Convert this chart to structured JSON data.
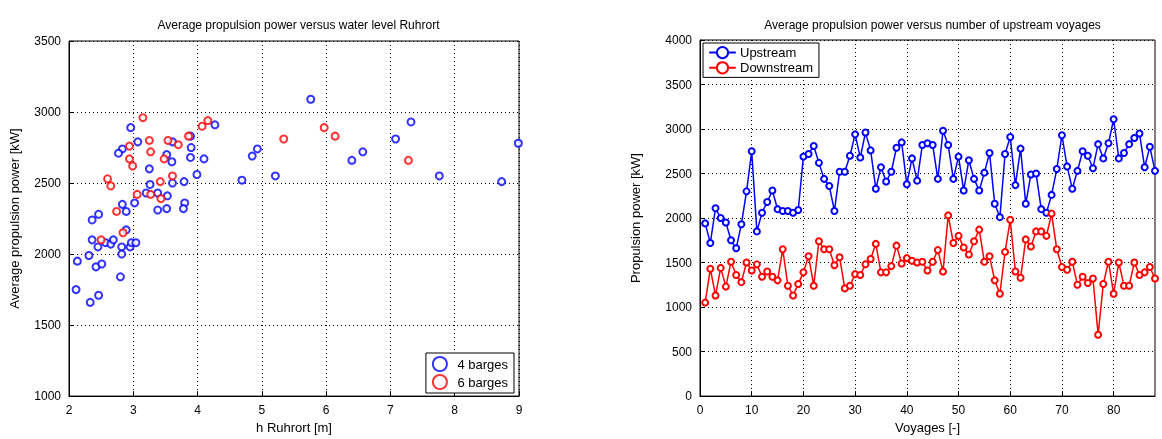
{
  "chart_data": [
    {
      "type": "scatter",
      "title": "Average propulsion power versus water level Ruhrort",
      "xlabel": "h Ruhrort [m]",
      "ylabel": "Average propulsion power [kW]",
      "xlim": [
        2,
        9
      ],
      "xticks": [
        2,
        3,
        4,
        5,
        6,
        7,
        8,
        9
      ],
      "ylim": [
        1000,
        3500
      ],
      "yticks": [
        1000,
        1500,
        2000,
        2500,
        3000,
        3500
      ],
      "grid": true,
      "legend": "bottom right",
      "marker": "circle",
      "series": [
        {
          "name": "4 barges",
          "color": "#0000ff",
          "x": [
            2.96,
            3.07,
            2.83,
            2.77,
            3.25,
            3.26,
            3.2,
            3.38,
            3.53,
            3.52,
            3.6,
            3.61,
            3.9,
            3.89,
            3.89,
            4.1,
            3.99,
            3.79,
            3.61,
            3.8,
            3.78,
            3.52,
            3.38,
            4.27,
            4.69,
            4.85,
            4.93,
            5.21,
            3.02,
            2.83,
            2.89,
            2.46,
            2.36,
            2.89,
            2.36,
            2.45,
            2.57,
            2.65,
            2.69,
            2.82,
            2.82,
            2.95,
            2.97,
            3.04,
            2.31,
            2.13,
            2.42,
            2.51,
            2.8,
            2.11,
            2.46,
            2.33,
            5.76,
            6.4,
            6.57,
            7.08,
            7.32,
            7.76,
            8.73,
            8.99
          ],
          "values": [
            2890,
            2790,
            2740,
            2710,
            2600,
            2490,
            2430,
            2430,
            2410,
            2700,
            2650,
            2790,
            2750,
            2830,
            2680,
            2670,
            2560,
            2510,
            2500,
            2360,
            2320,
            2320,
            2310,
            2910,
            2520,
            2690,
            2740,
            2550,
            2360,
            2350,
            2300,
            2280,
            2240,
            2170,
            2100,
            2050,
            2080,
            2070,
            2100,
            2050,
            2000,
            2050,
            2080,
            2080,
            1990,
            1950,
            1910,
            1930,
            1840,
            1750,
            1710,
            1660,
            3090,
            2660,
            2720,
            2810,
            2930,
            2550,
            2510,
            2780
          ]
        },
        {
          "name": "6 barges",
          "color": "#ff0000",
          "x": [
            3.15,
            2.94,
            3.25,
            3.27,
            2.94,
            2.99,
            3.54,
            3.7,
            3.86,
            4.07,
            4.16,
            3.48,
            3.61,
            3.42,
            2.6,
            2.65,
            3.06,
            3.27,
            3.43,
            2.74,
            2.84,
            2.5,
            5.34,
            5.97,
            6.14,
            7.28
          ],
          "values": [
            2960,
            2760,
            2800,
            2720,
            2670,
            2620,
            2800,
            2770,
            2830,
            2900,
            2940,
            2670,
            2550,
            2510,
            2530,
            2480,
            2420,
            2420,
            2390,
            2300,
            2150,
            2100,
            2810,
            2890,
            2830,
            2660
          ]
        }
      ]
    },
    {
      "type": "line",
      "title": "Average propulsion power versus number of upstream voyages",
      "xlabel": "Voyages [-]",
      "ylabel": "Propulsion power [kW]",
      "xlim": [
        0,
        88
      ],
      "xticks": [
        0,
        10,
        20,
        30,
        40,
        50,
        60,
        70,
        80
      ],
      "ylim": [
        0,
        4000
      ],
      "yticks": [
        0,
        500,
        1000,
        1500,
        2000,
        2500,
        3000,
        3500,
        4000
      ],
      "grid": true,
      "legend": "top left",
      "marker": "circle",
      "x": [
        1,
        2,
        3,
        4,
        5,
        6,
        7,
        8,
        9,
        10,
        11,
        12,
        13,
        14,
        15,
        16,
        17,
        18,
        19,
        20,
        21,
        22,
        23,
        24,
        25,
        26,
        27,
        28,
        29,
        30,
        31,
        32,
        33,
        34,
        35,
        36,
        37,
        38,
        39,
        40,
        41,
        42,
        43,
        44,
        45,
        46,
        47,
        48,
        49,
        50,
        51,
        52,
        53,
        54,
        55,
        56,
        57,
        58,
        59,
        60,
        61,
        62,
        63,
        64,
        65,
        66,
        67,
        68,
        69,
        70,
        71,
        72,
        73,
        74,
        75,
        76,
        77,
        78,
        79,
        80,
        81,
        82,
        83,
        84,
        85,
        86,
        87,
        88
      ],
      "series": [
        {
          "name": "Upstream",
          "color": "#0000ff",
          "values": [
            1940,
            1720,
            2110,
            2000,
            1950,
            1750,
            1660,
            1930,
            2300,
            2750,
            1850,
            2060,
            2180,
            2310,
            2100,
            2080,
            2080,
            2060,
            2090,
            2690,
            2720,
            2810,
            2620,
            2440,
            2360,
            2080,
            2520,
            2520,
            2700,
            2940,
            2680,
            2960,
            2760,
            2330,
            2570,
            2410,
            2520,
            2790,
            2850,
            2380,
            2670,
            2420,
            2820,
            2840,
            2820,
            2440,
            2980,
            2820,
            2440,
            2690,
            2310,
            2650,
            2440,
            2310,
            2510,
            2730,
            2160,
            2010,
            2720,
            2910,
            2370,
            2780,
            2160,
            2490,
            2500,
            2100,
            2060,
            2260,
            2550,
            2930,
            2580,
            2330,
            2530,
            2750,
            2700,
            2560,
            2830,
            2670,
            2840,
            3110,
            2670,
            2730,
            2830,
            2900,
            2950,
            2570,
            2800,
            2530
          ]
        },
        {
          "name": "Downstream",
          "color": "#ff0000",
          "values": [
            1050,
            1430,
            1130,
            1440,
            1230,
            1510,
            1360,
            1280,
            1500,
            1410,
            1480,
            1340,
            1400,
            1340,
            1300,
            1650,
            1240,
            1130,
            1260,
            1390,
            1570,
            1240,
            1740,
            1650,
            1650,
            1470,
            1560,
            1210,
            1240,
            1370,
            1360,
            1480,
            1540,
            1710,
            1390,
            1390,
            1460,
            1690,
            1490,
            1550,
            1520,
            1500,
            1510,
            1410,
            1510,
            1640,
            1400,
            2030,
            1720,
            1800,
            1670,
            1590,
            1740,
            1870,
            1510,
            1570,
            1300,
            1150,
            1620,
            1980,
            1400,
            1330,
            1760,
            1680,
            1850,
            1850,
            1800,
            2050,
            1650,
            1450,
            1420,
            1510,
            1250,
            1340,
            1270,
            1320,
            690,
            1260,
            1510,
            1150,
            1500,
            1240,
            1240,
            1500,
            1360,
            1390,
            1450,
            1320
          ]
        }
      ]
    }
  ]
}
